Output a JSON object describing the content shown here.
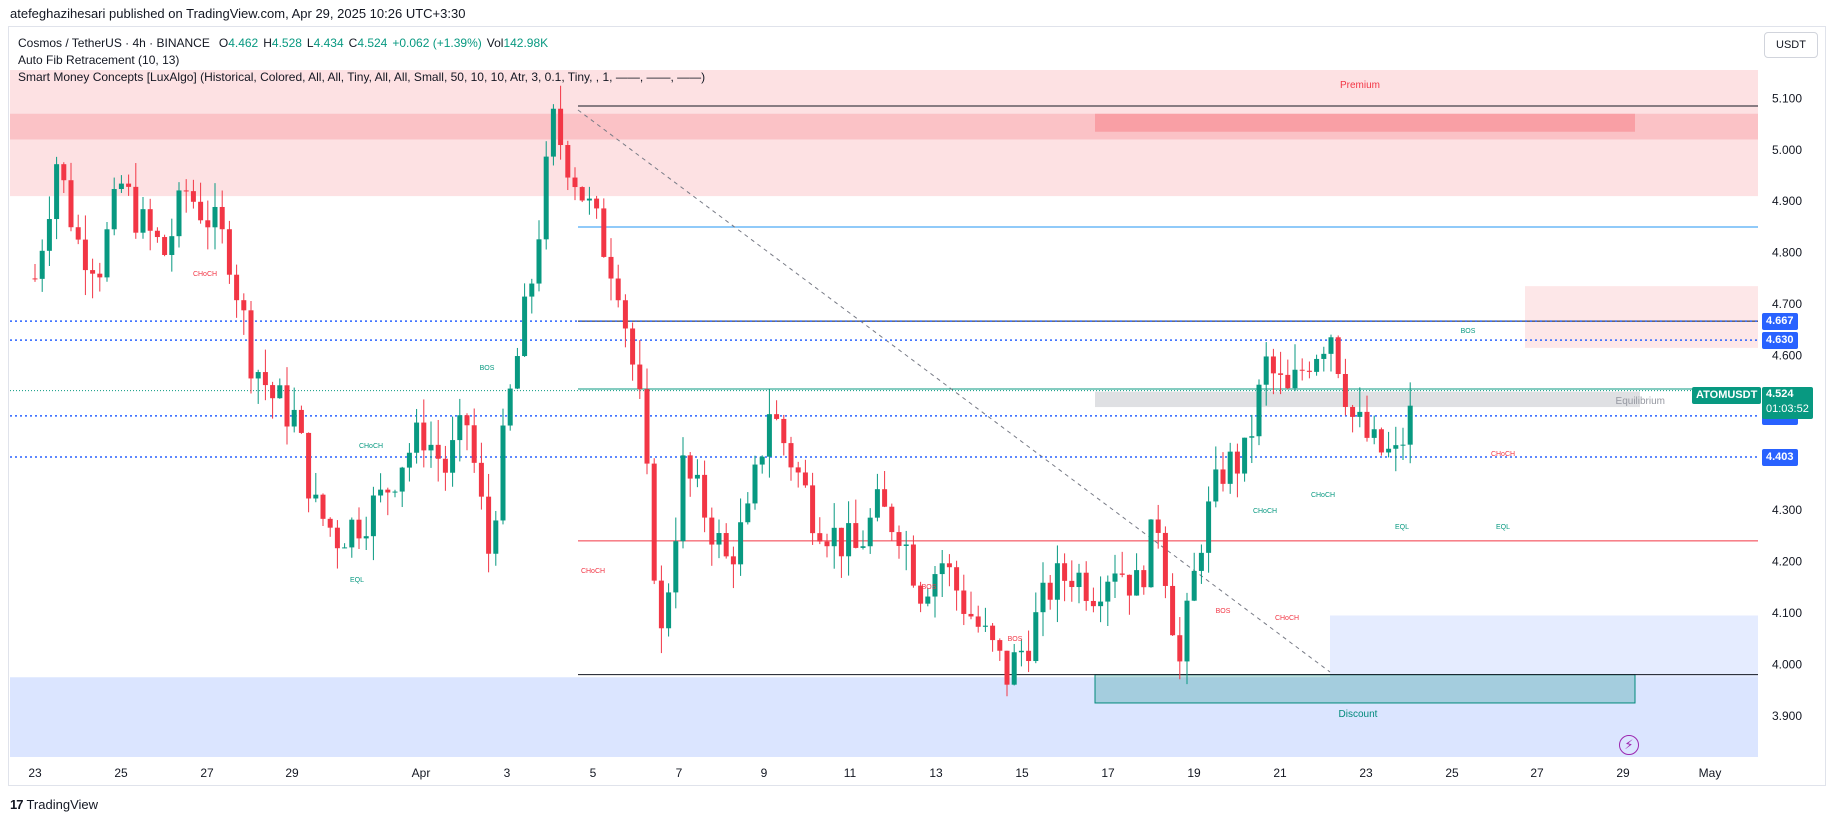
{
  "header": {
    "published": "atefeghazihesari published on TradingView.com, Apr 29, 2025 10:26 UTC+3:30"
  },
  "legend": {
    "symbol": "Cosmos / TetherUS · 4h · BINANCE",
    "o_label": "O",
    "o": "4.462",
    "h_label": "H",
    "h": "4.528",
    "l_label": "L",
    "l": "4.434",
    "c_label": "C",
    "c": "4.524",
    "change": "+0.062 (+1.39%)",
    "vol_label": "Vol",
    "vol": "142.98K",
    "indicator1": "Auto Fib Retracement (10, 13)",
    "indicator2": "Smart Money Concepts [LuxAlgo] (Historical, Colored, All, All, Tiny, All, All, Small, 50, 10, 10, Atr, 3, 0.1, Tiny, , 1, ——, ——, ——)"
  },
  "currency": "USDT",
  "footer": {
    "brand": "TradingView"
  },
  "colors": {
    "up": "#089981",
    "down": "#f23645",
    "accent": "#2962ff",
    "premium": "#f23645",
    "discount": "#2962ff"
  },
  "chart_data": {
    "type": "candlestick",
    "symbol": "ATOMUSDT",
    "interval": "4h",
    "y_axis": {
      "ylim": [
        3.82,
        5.155
      ],
      "ticks": [
        "5.100",
        "5.000",
        "4.900",
        "4.800",
        "4.700",
        "4.600",
        "4.300",
        "4.200",
        "4.100",
        "4.000",
        "3.900"
      ]
    },
    "x_axis": {
      "tick_labels": [
        "23",
        "25",
        "27",
        "29",
        "Apr",
        "3",
        "5",
        "7",
        "9",
        "11",
        "13",
        "15",
        "17",
        "19",
        "21",
        "23",
        "25",
        "27",
        "29",
        "May"
      ]
    },
    "price_labels": [
      {
        "text": "4.667",
        "value": 4.667
      },
      {
        "text": "4.630",
        "value": 4.63
      },
      {
        "text": "4.483",
        "value": 4.483
      },
      {
        "text": "4.403",
        "value": 4.403
      }
    ],
    "last_price": {
      "symbol": "ATOMUSDT",
      "price": "4.524",
      "value": 4.524,
      "countdown": "01:03:52"
    },
    "zone_labels": {
      "premium": "Premium",
      "equilibrium": "Equilibrium",
      "discount": "Discount"
    },
    "structure_labels": [
      "CHoCH",
      "EQL",
      "CHoCH",
      "BOS",
      "CHoCH",
      "BOS",
      "BOS",
      "BOS",
      "CHoCH",
      "CHoCH",
      "CHoCH",
      "EQL",
      "EQL",
      "BOS",
      "CHoCH"
    ],
    "keypoints_close": [
      {
        "d": 0,
        "v": 4.75
      },
      {
        "d": 0.5,
        "v": 4.98
      },
      {
        "d": 1,
        "v": 4.82
      },
      {
        "d": 1.5,
        "v": 4.78
      },
      {
        "d": 2,
        "v": 4.93
      },
      {
        "d": 2.5,
        "v": 4.85
      },
      {
        "d": 3,
        "v": 4.8
      },
      {
        "d": 3.5,
        "v": 4.92
      },
      {
        "d": 4,
        "v": 4.87
      },
      {
        "d": 4.5,
        "v": 4.8
      },
      {
        "d": 5,
        "v": 4.6
      },
      {
        "d": 5.5,
        "v": 4.52
      },
      {
        "d": 6,
        "v": 4.48
      },
      {
        "d": 6.5,
        "v": 4.3
      },
      {
        "d": 7,
        "v": 4.25
      },
      {
        "d": 7.5,
        "v": 4.28
      },
      {
        "d": 8,
        "v": 4.32
      },
      {
        "d": 8.5,
        "v": 4.4
      },
      {
        "d": 9,
        "v": 4.45
      },
      {
        "d": 9.5,
        "v": 4.38
      },
      {
        "d": 10,
        "v": 4.47
      },
      {
        "d": 10.5,
        "v": 4.22
      },
      {
        "d": 11,
        "v": 4.52
      },
      {
        "d": 11.5,
        "v": 4.75
      },
      {
        "d": 12,
        "v": 5.05
      },
      {
        "d": 12.5,
        "v": 4.95
      },
      {
        "d": 13,
        "v": 4.85
      },
      {
        "d": 13.5,
        "v": 4.75
      },
      {
        "d": 14,
        "v": 4.5
      },
      {
        "d": 14.5,
        "v": 4.05
      },
      {
        "d": 15,
        "v": 4.38
      },
      {
        "d": 15.5,
        "v": 4.3
      },
      {
        "d": 16,
        "v": 4.2
      },
      {
        "d": 16.5,
        "v": 4.28
      },
      {
        "d": 17,
        "v": 4.5
      },
      {
        "d": 17.5,
        "v": 4.4
      },
      {
        "d": 18,
        "v": 4.3
      },
      {
        "d": 18.5,
        "v": 4.25
      },
      {
        "d": 19,
        "v": 4.22
      },
      {
        "d": 19.5,
        "v": 4.3
      },
      {
        "d": 20,
        "v": 4.27
      },
      {
        "d": 20.5,
        "v": 4.15
      },
      {
        "d": 21,
        "v": 4.2
      },
      {
        "d": 21.5,
        "v": 4.12
      },
      {
        "d": 22,
        "v": 4.05
      },
      {
        "d": 22.5,
        "v": 3.98
      },
      {
        "d": 23,
        "v": 4.05
      },
      {
        "d": 23.5,
        "v": 4.15
      },
      {
        "d": 24,
        "v": 4.18
      },
      {
        "d": 24.5,
        "v": 4.15
      },
      {
        "d": 25,
        "v": 4.2
      },
      {
        "d": 25.5,
        "v": 4.15
      },
      {
        "d": 26,
        "v": 4.28
      },
      {
        "d": 26.5,
        "v": 4.0
      },
      {
        "d": 27,
        "v": 4.25
      },
      {
        "d": 27.5,
        "v": 4.38
      },
      {
        "d": 28,
        "v": 4.4
      },
      {
        "d": 28.5,
        "v": 4.58
      },
      {
        "d": 29,
        "v": 4.52
      },
      {
        "d": 29.5,
        "v": 4.6
      },
      {
        "d": 30,
        "v": 4.65
      },
      {
        "d": 30.5,
        "v": 4.48
      },
      {
        "d": 31,
        "v": 4.42
      },
      {
        "d": 31.5,
        "v": 4.4
      },
      {
        "d": 32,
        "v": 4.52
      }
    ]
  }
}
